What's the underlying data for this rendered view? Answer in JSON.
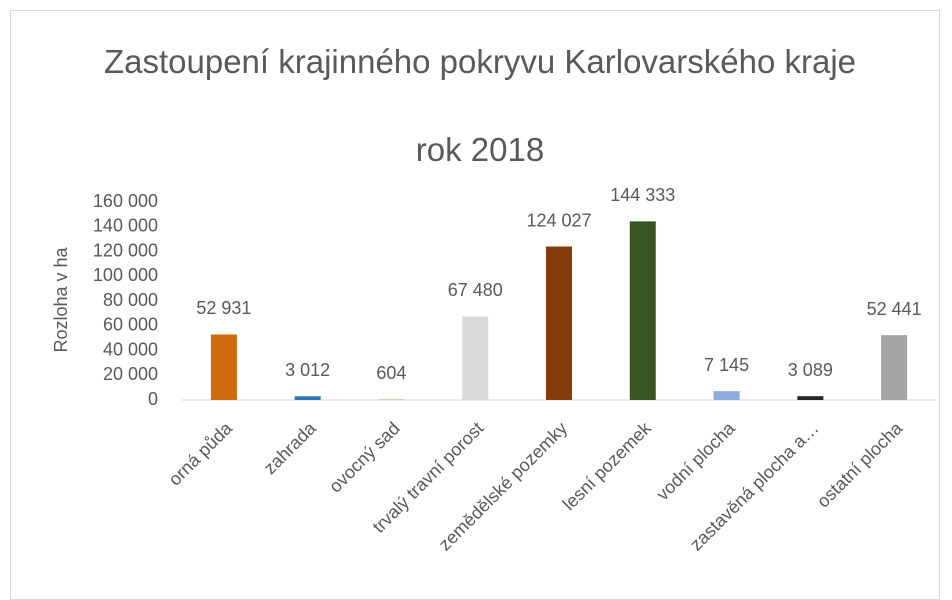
{
  "chart_data": {
    "type": "bar",
    "title": "Zastoupení krajinného pokryvu Karlovarského kraje",
    "subtitle": "rok 2018",
    "y_label": "Rozloha v ha",
    "categories": [
      "orná půda",
      "zahrada",
      "ovocný sad",
      "trvalý travní porost",
      "zemědělské pozemky",
      "lesní pozemek",
      "vodní plocha",
      "zastavěná plocha a…",
      "ostatní plocha"
    ],
    "values": [
      52931,
      3012,
      604,
      67480,
      124027,
      144333,
      7145,
      3089,
      52441
    ],
    "value_labels": [
      "52 931",
      "3 012",
      "604",
      "67 480",
      "124 027",
      "144 333",
      "7 145",
      "3 089",
      "52 441"
    ],
    "colors": [
      "#d2690c",
      "#2e75b6",
      "#c9c0a2",
      "#d9d9d9",
      "#843c0c",
      "#375623",
      "#8faadc",
      "#262626",
      "#a5a5a5"
    ],
    "ylim": [
      0,
      160000
    ],
    "yticks": [
      0,
      {
        "value": 20000,
        "label": "20 000"
      },
      {
        "value": 40000,
        "label": "40 000"
      },
      {
        "value": 60000,
        "label": "60 000"
      },
      {
        "value": 80000,
        "label": "80 000"
      },
      {
        "value": 100000,
        "label": "100 000"
      },
      {
        "value": 120000,
        "label": "120 000"
      },
      {
        "value": 140000,
        "label": "140 000"
      },
      {
        "value": 160000,
        "label": "160 000"
      }
    ],
    "grid": false
  }
}
